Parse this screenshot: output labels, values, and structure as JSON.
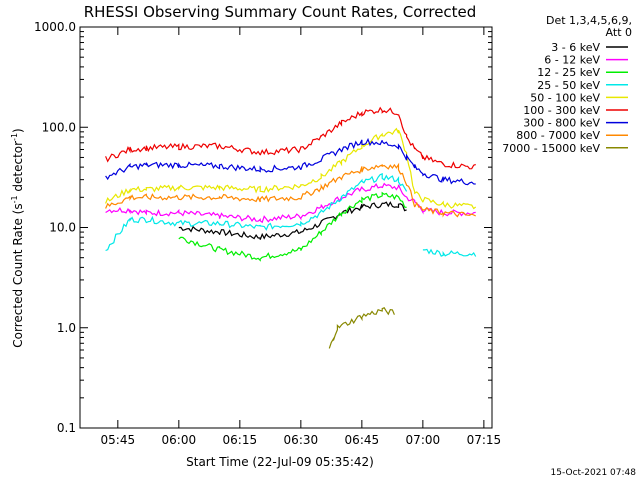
{
  "chart_data": {
    "type": "line",
    "title": "RHESSI Observing Summary Count Rates, Corrected",
    "ylabel": "Corrected Count Rate (s⁻¹ detector⁻¹)",
    "ylabel_main": "Corrected Count Rate (s",
    "ylabel_sup1": "-1",
    "ylabel_mid": " detector",
    "ylabel_sup2": "-1",
    "ylabel_end": ")",
    "xlabel": "Start Time (22-Jul-09 05:35:42)",
    "footer": "15-Oct-2021 07:48",
    "y_scale": "log",
    "ylim": [
      0.1,
      1000
    ],
    "xlim": [
      "05:35:42",
      "07:17:00"
    ],
    "y_ticks": [
      {
        "value": 1000,
        "label": "1000.0"
      },
      {
        "value": 100,
        "label": "100.0"
      },
      {
        "value": 10,
        "label": "10.0"
      },
      {
        "value": 1,
        "label": "1.0"
      },
      {
        "value": 0.1,
        "label": "0.1"
      }
    ],
    "x_ticks": [
      {
        "value": "05:45",
        "label": "05:45"
      },
      {
        "value": "06:00",
        "label": "06:00"
      },
      {
        "value": "06:15",
        "label": "06:15"
      },
      {
        "value": "06:30",
        "label": "06:30"
      },
      {
        "value": "06:45",
        "label": "06:45"
      },
      {
        "value": "07:00",
        "label": "07:00"
      },
      {
        "value": "07:15",
        "label": "07:15"
      }
    ],
    "legend": {
      "placement": "top-right",
      "header1": "Det 1,3,4,5,6,9,",
      "header2": "Att 0"
    },
    "series": [
      {
        "name": "3 - 6 keV",
        "color": "#000000",
        "x": [
          "05:42",
          "05:48",
          "05:52",
          "06:00",
          "06:10",
          "06:20",
          "06:30",
          "06:35",
          "06:40",
          "06:45",
          "06:50",
          "06:54",
          "06:56",
          "06:58",
          "07:00",
          "07:05",
          "07:13"
        ],
        "values": [
          null,
          null,
          null,
          10,
          9,
          8,
          9,
          11,
          14,
          16,
          17,
          17,
          15,
          null,
          null,
          null,
          null
        ]
      },
      {
        "name": "6 - 12 keV",
        "color": "#ff00ff",
        "x": [
          "05:42",
          "05:48",
          "05:52",
          "06:00",
          "06:10",
          "06:20",
          "06:30",
          "06:35",
          "06:40",
          "06:45",
          "06:50",
          "06:54",
          "06:56",
          "06:58",
          "07:00",
          "07:05",
          "07:13"
        ],
        "values": [
          15,
          15,
          14,
          14,
          13,
          12,
          13,
          16,
          20,
          24,
          26,
          25,
          20,
          18,
          15,
          14,
          14
        ]
      },
      {
        "name": "12 - 25 keV",
        "color": "#00ee00",
        "x": [
          "05:42",
          "05:48",
          "05:52",
          "06:00",
          "06:10",
          "06:20",
          "06:30",
          "06:35",
          "06:40",
          "06:45",
          "06:50",
          "06:54",
          "06:56",
          "06:58",
          "07:00",
          "07:05",
          "07:13"
        ],
        "values": [
          null,
          null,
          null,
          8,
          6,
          5,
          6,
          9,
          14,
          19,
          21,
          20,
          16,
          null,
          null,
          null,
          null
        ]
      },
      {
        "name": "25 - 50 keV",
        "color": "#00e8e8",
        "x": [
          "05:42",
          "05:48",
          "05:52",
          "06:00",
          "06:10",
          "06:20",
          "06:30",
          "06:35",
          "06:40",
          "06:45",
          "06:50",
          "06:54",
          "06:56",
          "06:58",
          "07:00",
          "07:05",
          "07:13"
        ],
        "values": [
          6,
          12,
          12,
          11,
          11,
          10,
          11,
          14,
          20,
          28,
          32,
          30,
          22,
          null,
          6,
          5.5,
          5.5
        ]
      },
      {
        "name": "50 - 100 keV",
        "color": "#e8e800",
        "x": [
          "05:42",
          "05:48",
          "05:52",
          "06:00",
          "06:10",
          "06:20",
          "06:30",
          "06:35",
          "06:40",
          "06:45",
          "06:50",
          "06:54",
          "06:56",
          "06:58",
          "07:00",
          "07:05",
          "07:13"
        ],
        "values": [
          18,
          24,
          24,
          25,
          25,
          24,
          26,
          32,
          45,
          65,
          85,
          92,
          55,
          22,
          19,
          17,
          16
        ]
      },
      {
        "name": "100 - 300 keV",
        "color": "#ee0000",
        "x": [
          "05:42",
          "05:48",
          "05:52",
          "06:00",
          "06:10",
          "06:20",
          "06:30",
          "06:35",
          "06:40",
          "06:45",
          "06:50",
          "06:54",
          "06:56",
          "06:58",
          "07:00",
          "07:05",
          "07:13"
        ],
        "values": [
          48,
          60,
          62,
          64,
          65,
          56,
          60,
          80,
          110,
          140,
          150,
          140,
          80,
          60,
          50,
          43,
          40
        ]
      },
      {
        "name": "300 - 800 keV",
        "color": "#0000dd",
        "x": [
          "05:42",
          "05:48",
          "05:52",
          "06:00",
          "06:10",
          "06:20",
          "06:30",
          "06:35",
          "06:40",
          "06:45",
          "06:50",
          "06:54",
          "06:56",
          "06:58",
          "07:00",
          "07:05",
          "07:13"
        ],
        "values": [
          32,
          40,
          42,
          42,
          41,
          38,
          40,
          48,
          60,
          72,
          70,
          65,
          50,
          40,
          35,
          30,
          28
        ]
      },
      {
        "name": "800 - 7000 keV",
        "color": "#ff8800",
        "x": [
          "05:42",
          "05:48",
          "05:52",
          "06:00",
          "06:10",
          "06:20",
          "06:30",
          "06:35",
          "06:40",
          "06:45",
          "06:50",
          "06:54",
          "06:56",
          "06:58",
          "07:00",
          "07:05",
          "07:13"
        ],
        "values": [
          16,
          20,
          20,
          20,
          20,
          19,
          20,
          25,
          32,
          38,
          42,
          40,
          28,
          17,
          15,
          14,
          13
        ]
      },
      {
        "name": "7000 - 15000 keV",
        "color": "#888800",
        "x": [
          "06:37",
          "06:38",
          "06:39",
          "06:45",
          "06:50",
          "06:53",
          "06:54"
        ],
        "values": [
          0.6,
          0.8,
          1.0,
          1.3,
          1.5,
          1.4,
          null
        ]
      }
    ]
  }
}
